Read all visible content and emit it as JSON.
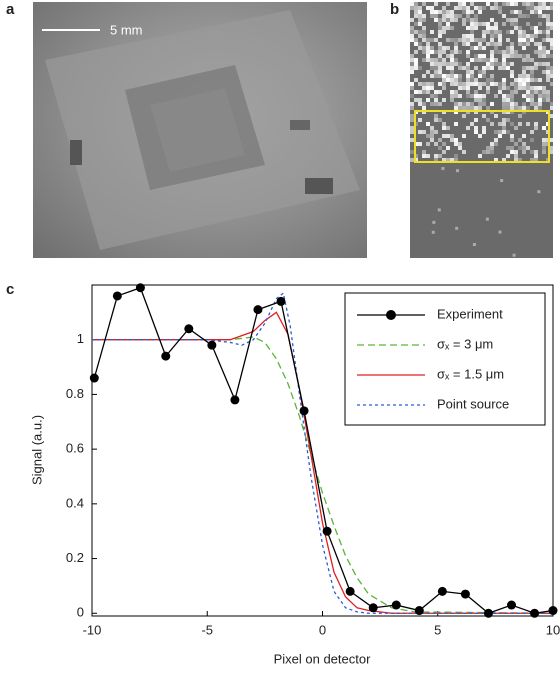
{
  "panel_labels": [
    "a",
    "b",
    "c"
  ],
  "scale_bar": "5 mm",
  "chart_data": {
    "type": "line",
    "xlabel": "Pixel on detector",
    "ylabel": "Signal (a.u.)",
    "xlim": [
      -10,
      10
    ],
    "ylim": [
      -0.01,
      1.2
    ],
    "xticks": [
      -10,
      -5,
      0,
      5,
      10
    ],
    "yticks": [
      0,
      0.2,
      0.4,
      0.6,
      0.8,
      1
    ],
    "legend": "upper right",
    "series": [
      {
        "name": "Experiment",
        "color": "#000000",
        "style": "solid-markers",
        "x": [
          -9.9,
          -8.9,
          -7.9,
          -6.8,
          -5.8,
          -4.8,
          -3.8,
          -2.8,
          -1.8,
          -0.8,
          0.2,
          1.2,
          2.2,
          3.2,
          4.2,
          5.2,
          6.2,
          7.2,
          8.2,
          9.2,
          10
        ],
        "values": [
          0.86,
          1.16,
          1.19,
          0.94,
          1.04,
          0.98,
          0.78,
          1.11,
          1.14,
          0.74,
          0.3,
          0.08,
          0.02,
          0.03,
          0.01,
          0.08,
          0.07,
          0,
          0.03,
          0,
          0.01
        ]
      },
      {
        "name": "σₓ = 3 μm",
        "color": "#5bb33b",
        "style": "dashed",
        "x": [
          -10,
          -6,
          -5,
          -4,
          -3,
          -2.5,
          -2,
          -1.5,
          -1,
          -0.5,
          0,
          0.5,
          1,
          1.5,
          2,
          3,
          4,
          10
        ],
        "values": [
          1,
          1,
          1,
          1,
          1.01,
          0.99,
          0.93,
          0.84,
          0.72,
          0.58,
          0.44,
          0.32,
          0.21,
          0.13,
          0.07,
          0.02,
          0.005,
          0
        ]
      },
      {
        "name": "σₓ = 1.5 μm",
        "color": "#e02020",
        "style": "solid",
        "x": [
          -10,
          -5,
          -4,
          -3,
          -2.5,
          -2,
          -1.5,
          -1,
          -0.5,
          0,
          0.5,
          1,
          1.5,
          2,
          3,
          10
        ],
        "values": [
          1,
          1,
          1,
          1.03,
          1.07,
          1.1,
          1.02,
          0.82,
          0.58,
          0.33,
          0.15,
          0.06,
          0.02,
          0.01,
          0,
          0
        ]
      },
      {
        "name": "Point source",
        "color": "#2a5bd7",
        "style": "dotted",
        "x": [
          -10,
          -5,
          -4,
          -3.5,
          -3,
          -2.5,
          -2,
          -1.7,
          -1.4,
          -1,
          -0.5,
          0,
          0.5,
          1,
          1.5,
          2,
          3,
          10
        ],
        "values": [
          1,
          1,
          0.99,
          0.98,
          1,
          1.06,
          1.15,
          1.17,
          1.05,
          0.8,
          0.5,
          0.25,
          0.08,
          0.02,
          0.005,
          0,
          0,
          0
        ]
      }
    ]
  }
}
